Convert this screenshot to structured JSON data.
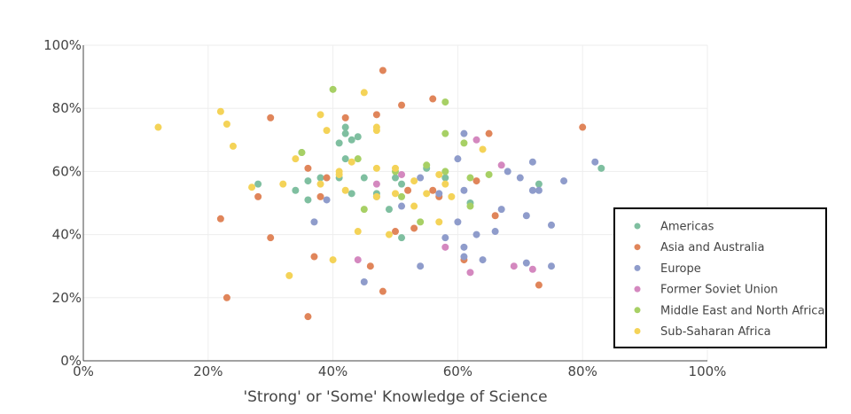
{
  "chart_data": {
    "type": "scatter",
    "xlabel": "'Strong' or 'Some' Knowledge of Science",
    "ylabel": "",
    "xlim": [
      0,
      100
    ],
    "ylim": [
      0,
      100
    ],
    "x_ticks": [
      0,
      20,
      40,
      60,
      80,
      100
    ],
    "y_ticks": [
      0,
      20,
      40,
      60,
      80,
      100
    ],
    "x_tick_labels": [
      "0%",
      "20%",
      "40%",
      "60%",
      "80%",
      "100%"
    ],
    "y_tick_labels": [
      "0%",
      "20%",
      "40%",
      "60%",
      "80%",
      "100%"
    ],
    "grid": true,
    "legend_position": "bottom-right",
    "series": [
      {
        "name": "Americas",
        "color": "#7fbfa0",
        "points": [
          [
            28,
            56
          ],
          [
            34,
            54
          ],
          [
            35,
            66
          ],
          [
            36,
            57
          ],
          [
            36,
            51
          ],
          [
            38,
            58
          ],
          [
            41,
            69
          ],
          [
            41,
            58
          ],
          [
            42,
            74
          ],
          [
            42,
            72
          ],
          [
            42,
            64
          ],
          [
            43,
            70
          ],
          [
            43,
            53
          ],
          [
            44,
            71
          ],
          [
            45,
            58
          ],
          [
            47,
            53
          ],
          [
            49,
            48
          ],
          [
            50,
            58
          ],
          [
            51,
            56
          ],
          [
            51,
            39
          ],
          [
            55,
            61
          ],
          [
            58,
            58
          ],
          [
            62,
            50
          ],
          [
            73,
            56
          ],
          [
            83,
            61
          ]
        ]
      },
      {
        "name": "Asia and Australia",
        "color": "#e0855a",
        "points": [
          [
            22,
            45
          ],
          [
            23,
            20
          ],
          [
            28,
            52
          ],
          [
            30,
            77
          ],
          [
            30,
            39
          ],
          [
            36,
            61
          ],
          [
            36,
            14
          ],
          [
            37,
            33
          ],
          [
            38,
            52
          ],
          [
            39,
            58
          ],
          [
            42,
            77
          ],
          [
            46,
            30
          ],
          [
            47,
            78
          ],
          [
            48,
            92
          ],
          [
            48,
            22
          ],
          [
            50,
            41
          ],
          [
            51,
            81
          ],
          [
            52,
            54
          ],
          [
            53,
            42
          ],
          [
            56,
            54
          ],
          [
            56,
            83
          ],
          [
            57,
            52
          ],
          [
            61,
            32
          ],
          [
            63,
            57
          ],
          [
            65,
            72
          ],
          [
            66,
            46
          ],
          [
            73,
            24
          ],
          [
            80,
            74
          ]
        ]
      },
      {
        "name": "Europe",
        "color": "#8f9ccb",
        "points": [
          [
            37,
            44
          ],
          [
            39,
            51
          ],
          [
            45,
            25
          ],
          [
            47,
            52
          ],
          [
            51,
            49
          ],
          [
            54,
            30
          ],
          [
            54,
            58
          ],
          [
            57,
            53
          ],
          [
            58,
            39
          ],
          [
            60,
            44
          ],
          [
            60,
            64
          ],
          [
            61,
            33
          ],
          [
            61,
            36
          ],
          [
            61,
            54
          ],
          [
            61,
            72
          ],
          [
            63,
            40
          ],
          [
            64,
            32
          ],
          [
            66,
            41
          ],
          [
            67,
            48
          ],
          [
            68,
            60
          ],
          [
            70,
            58
          ],
          [
            71,
            46
          ],
          [
            71,
            31
          ],
          [
            72,
            54
          ],
          [
            72,
            63
          ],
          [
            73,
            54
          ],
          [
            75,
            43
          ],
          [
            75,
            30
          ],
          [
            77,
            57
          ],
          [
            82,
            63
          ]
        ]
      },
      {
        "name": "Former Soviet Union",
        "color": "#d488bf",
        "points": [
          [
            44,
            32
          ],
          [
            47,
            56
          ],
          [
            51,
            59
          ],
          [
            58,
            36
          ],
          [
            62,
            28
          ],
          [
            63,
            70
          ],
          [
            67,
            62
          ],
          [
            69,
            30
          ],
          [
            72,
            29
          ]
        ]
      },
      {
        "name": "Middle East and North Africa",
        "color": "#a7d065",
        "points": [
          [
            35,
            66
          ],
          [
            40,
            86
          ],
          [
            44,
            64
          ],
          [
            45,
            48
          ],
          [
            50,
            60
          ],
          [
            51,
            52
          ],
          [
            54,
            44
          ],
          [
            55,
            62
          ],
          [
            58,
            82
          ],
          [
            58,
            72
          ],
          [
            58,
            60
          ],
          [
            61,
            69
          ],
          [
            62,
            58
          ],
          [
            62,
            49
          ],
          [
            65,
            59
          ]
        ]
      },
      {
        "name": "Sub-Saharan Africa",
        "color": "#f4d358",
        "points": [
          [
            12,
            74
          ],
          [
            22,
            79
          ],
          [
            23,
            75
          ],
          [
            24,
            68
          ],
          [
            27,
            55
          ],
          [
            32,
            56
          ],
          [
            33,
            27
          ],
          [
            34,
            64
          ],
          [
            38,
            78
          ],
          [
            38,
            56
          ],
          [
            39,
            73
          ],
          [
            40,
            32
          ],
          [
            41,
            60
          ],
          [
            41,
            59
          ],
          [
            42,
            54
          ],
          [
            43,
            63
          ],
          [
            44,
            41
          ],
          [
            45,
            85
          ],
          [
            47,
            74
          ],
          [
            47,
            73
          ],
          [
            47,
            61
          ],
          [
            47,
            52
          ],
          [
            49,
            40
          ],
          [
            50,
            61
          ],
          [
            50,
            53
          ],
          [
            53,
            57
          ],
          [
            53,
            49
          ],
          [
            55,
            53
          ],
          [
            57,
            59
          ],
          [
            57,
            44
          ],
          [
            58,
            56
          ],
          [
            59,
            52
          ],
          [
            64,
            67
          ]
        ]
      }
    ]
  }
}
